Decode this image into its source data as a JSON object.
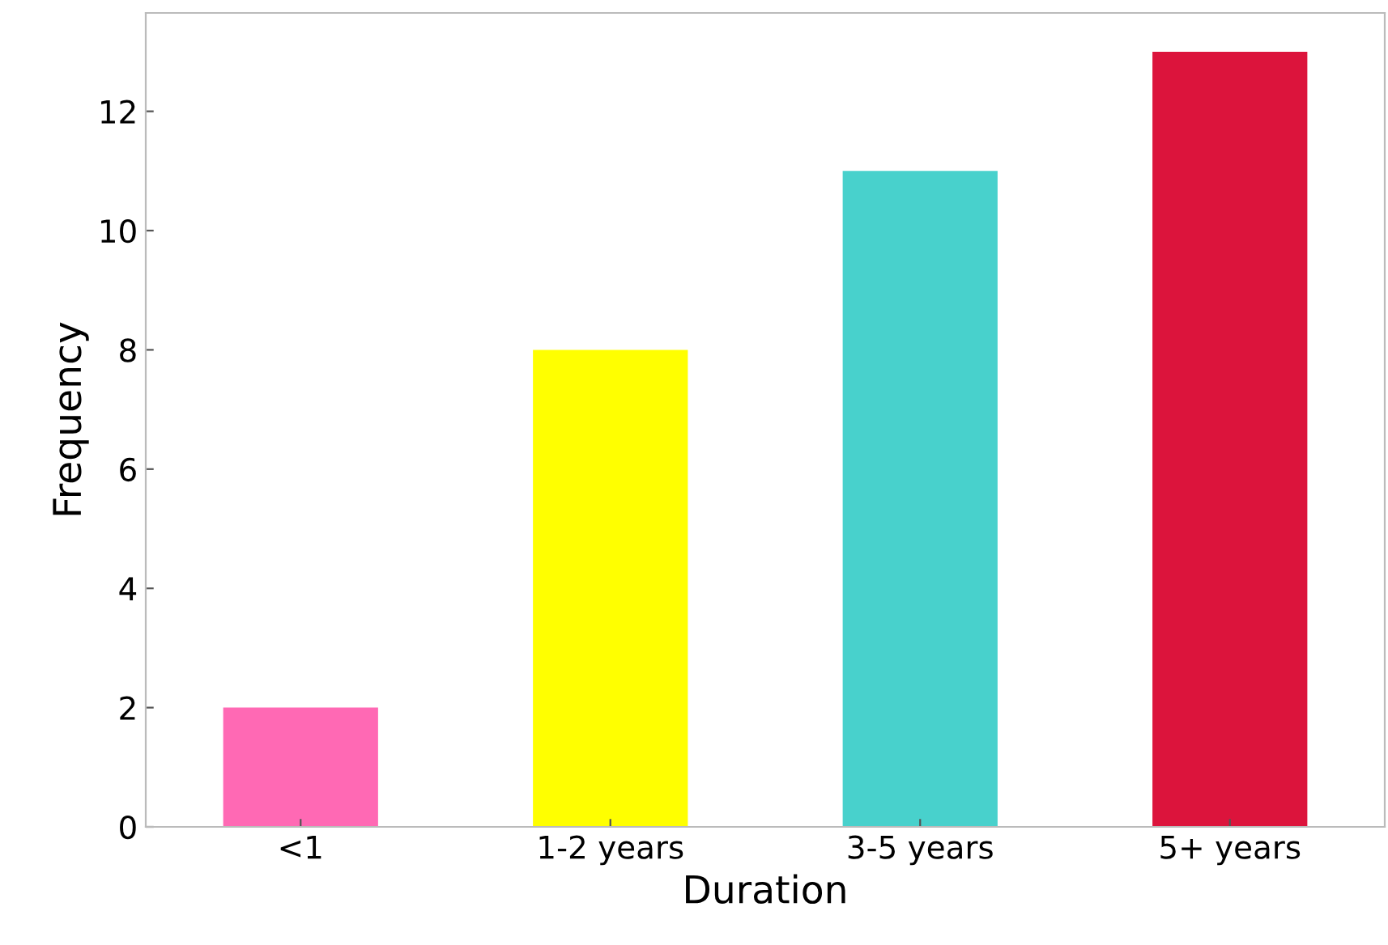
{
  "chart_data": {
    "type": "bar",
    "xlabel": "Duration",
    "ylabel": "Frequency",
    "categories": [
      "<1",
      "1-2 years",
      "3-5 years",
      "5+ years"
    ],
    "values": [
      2,
      8,
      11,
      13
    ],
    "colors": [
      "#ff69b4",
      "#ffff00",
      "#48d1cc",
      "#dc143c"
    ],
    "ylim": [
      0,
      13.65
    ],
    "yticks": [
      0,
      2,
      4,
      6,
      8,
      10,
      12
    ],
    "grid": false,
    "legend": false
  }
}
